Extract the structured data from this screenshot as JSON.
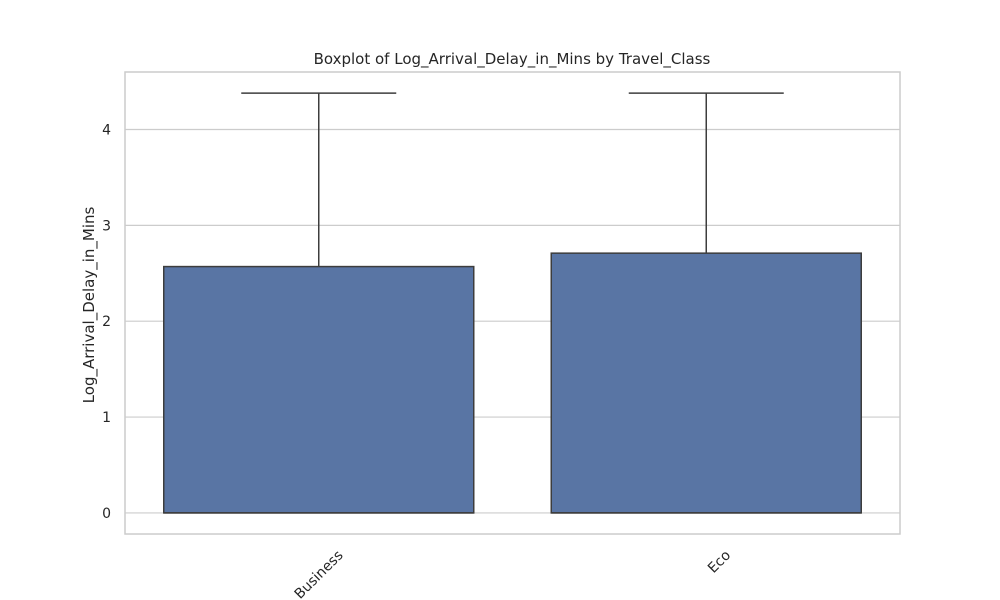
{
  "chart_data": {
    "type": "box",
    "title": "Boxplot of Log_Arrival_Delay_in_Mins by Travel_Class",
    "xlabel": "",
    "ylabel": "Log_Arrival_Delay_in_Mins",
    "categories": [
      "Business",
      "Eco"
    ],
    "boxes": [
      {
        "category": "Business",
        "whisker_low": 0,
        "q1": 0,
        "median": 0,
        "q3": 2.57,
        "whisker_high": 4.38
      },
      {
        "category": "Eco",
        "whisker_low": 0,
        "q1": 0,
        "median": 0,
        "q3": 2.71,
        "whisker_high": 4.38
      }
    ],
    "yticks": [
      0,
      1,
      2,
      3,
      4
    ],
    "ylim": [
      -0.22,
      4.6
    ],
    "grid": "horizontal",
    "box_color": "#5975a4",
    "edge_color": "#3d3d3d",
    "grid_color": "#cccccc"
  }
}
